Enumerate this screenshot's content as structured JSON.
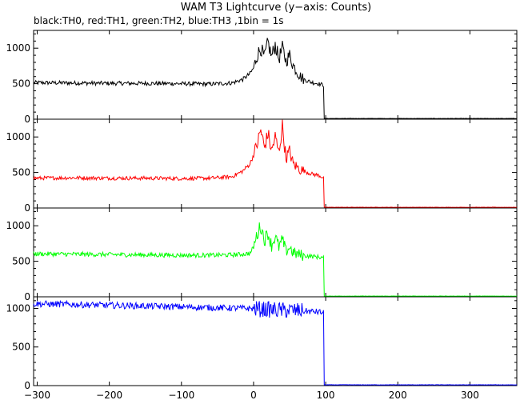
{
  "chart_data": {
    "type": "line",
    "title": "WAM T3 Lightcurve (y−axis: Counts)",
    "subtitle": "black:TH0, red:TH1, green:TH2, blue:TH3 ,1bin = 1s",
    "xlabel": "",
    "ylabel": "",
    "xlim": [
      -305,
      365
    ],
    "xticks": [
      -300,
      -200,
      -100,
      0,
      100,
      200,
      300
    ],
    "xtick_labels": [
      "−300",
      "−200",
      "−100",
      "0",
      "100",
      "200",
      "300"
    ],
    "grid": false,
    "panels": [
      {
        "name": "TH0",
        "color": "#000000",
        "ylim": [
          0,
          1250
        ],
        "yticks": [
          0,
          500,
          1000
        ],
        "ytick_labels": [
          "0",
          "500",
          "1000"
        ],
        "series": {
          "x": [
            -305,
            -250,
            -200,
            -150,
            -100,
            -60,
            -30,
            -15,
            -5,
            0,
            5,
            10,
            15,
            20,
            25,
            30,
            35,
            40,
            45,
            50,
            55,
            60,
            65,
            70,
            80,
            90,
            97,
            98,
            100,
            150,
            200,
            250,
            300,
            365
          ],
          "y": [
            515,
            510,
            505,
            505,
            500,
            495,
            510,
            560,
            640,
            720,
            900,
            1000,
            870,
            1080,
            880,
            1050,
            850,
            1000,
            820,
            900,
            760,
            680,
            600,
            560,
            520,
            500,
            480,
            10,
            10,
            10,
            10,
            10,
            10,
            10
          ]
        }
      },
      {
        "name": "TH1",
        "color": "#ff0000",
        "ylim": [
          0,
          1250
        ],
        "yticks": [
          0,
          500,
          1000
        ],
        "ytick_labels": [
          "0",
          "500",
          "1000"
        ],
        "series": {
          "x": [
            -305,
            -250,
            -200,
            -150,
            -100,
            -60,
            -30,
            -15,
            -5,
            0,
            5,
            10,
            15,
            20,
            25,
            30,
            35,
            40,
            45,
            50,
            55,
            60,
            65,
            70,
            80,
            90,
            97,
            98,
            100,
            150,
            200,
            250,
            300,
            365
          ],
          "y": [
            420,
            425,
            420,
            420,
            415,
            420,
            440,
            520,
            620,
            750,
            900,
            1100,
            850,
            1050,
            800,
            1000,
            780,
            1150,
            700,
            800,
            620,
            580,
            540,
            520,
            480,
            460,
            430,
            10,
            10,
            10,
            10,
            10,
            10,
            10
          ]
        }
      },
      {
        "name": "TH2",
        "color": "#00ff00",
        "ylim": [
          0,
          1250
        ],
        "yticks": [
          0,
          500,
          1000
        ],
        "ytick_labels": [
          "0",
          "500",
          "1000"
        ],
        "series": {
          "x": [
            -305,
            -250,
            -200,
            -150,
            -100,
            -60,
            -30,
            -15,
            -5,
            0,
            5,
            10,
            15,
            20,
            25,
            30,
            35,
            40,
            45,
            50,
            55,
            60,
            65,
            70,
            80,
            90,
            97,
            98,
            100,
            150,
            200,
            250,
            300,
            365
          ],
          "y": [
            605,
            600,
            595,
            590,
            585,
            585,
            590,
            600,
            610,
            700,
            880,
            1000,
            800,
            900,
            720,
            850,
            700,
            800,
            640,
            700,
            620,
            600,
            590,
            580,
            570,
            560,
            550,
            10,
            10,
            10,
            10,
            10,
            10,
            10
          ]
        }
      },
      {
        "name": "TH3",
        "color": "#0000ff",
        "ylim": [
          0,
          1150
        ],
        "yticks": [
          0,
          500,
          1000
        ],
        "ytick_labels": [
          "0",
          "500",
          "1000"
        ],
        "series": {
          "x": [
            -305,
            -250,
            -200,
            -150,
            -100,
            -60,
            -30,
            -15,
            -5,
            0,
            10,
            20,
            30,
            40,
            50,
            60,
            70,
            80,
            90,
            97,
            98,
            100,
            150,
            200,
            250,
            300,
            365
          ],
          "y": [
            1060,
            1050,
            1040,
            1030,
            1020,
            1010,
            1005,
            1000,
            1000,
            995,
            990,
            985,
            980,
            975,
            975,
            970,
            965,
            960,
            955,
            940,
            10,
            10,
            10,
            10,
            10,
            10,
            10
          ]
        }
      }
    ]
  }
}
